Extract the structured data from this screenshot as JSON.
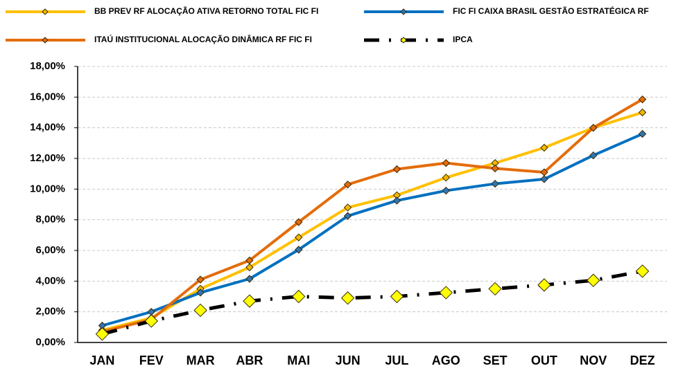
{
  "chart_data": {
    "type": "line",
    "categories": [
      "JAN",
      "FEV",
      "MAR",
      "ABR",
      "MAI",
      "JUN",
      "JUL",
      "AGO",
      "SET",
      "OUT",
      "NOV",
      "DEZ"
    ],
    "series": [
      {
        "name": "BB PREV RF ALOCAÇÃO ATIVA RETORNO TOTAL FIC FI",
        "color": "#ffc000",
        "marker_color": "#f5b800",
        "dashed": false,
        "values": [
          0.8,
          1.6,
          3.5,
          4.9,
          6.85,
          8.8,
          9.6,
          10.75,
          11.7,
          12.7,
          14.0,
          15.0
        ]
      },
      {
        "name": "FIC FI CAIXA BRASIL GESTÃO ESTRATÉGICA RF",
        "color": "#0070c0",
        "marker_color": "#2e75b6",
        "dashed": false,
        "values": [
          1.1,
          2.0,
          3.25,
          4.15,
          6.05,
          8.25,
          9.25,
          9.9,
          10.35,
          10.65,
          12.2,
          13.6
        ]
      },
      {
        "name": "ITAÚ INSTITUCIONAL ALOCAÇÃO DINÂMICA RF FIC FI",
        "color": "#e46c0a",
        "marker_color": "#e46c0a",
        "dashed": false,
        "values": [
          0.7,
          1.5,
          4.1,
          5.35,
          7.85,
          10.3,
          11.3,
          11.7,
          11.35,
          11.1,
          14.0,
          15.85
        ]
      },
      {
        "name": "IPCA",
        "color": "#000000",
        "marker_color": "#ffff00",
        "dashed": true,
        "values": [
          0.55,
          1.4,
          2.1,
          2.7,
          3.0,
          2.9,
          3.0,
          3.25,
          3.5,
          3.75,
          4.05,
          4.65
        ]
      }
    ],
    "ylim": [
      0,
      18
    ],
    "yticks": [
      {
        "value": 0,
        "label": "0,00%"
      },
      {
        "value": 2,
        "label": "2,00%"
      },
      {
        "value": 4,
        "label": "4,00%"
      },
      {
        "value": 6,
        "label": "6,00%"
      },
      {
        "value": 8,
        "label": "8,00%"
      },
      {
        "value": 10,
        "label": "10,00%"
      },
      {
        "value": 12,
        "label": "12,00%"
      },
      {
        "value": 14,
        "label": "14,00%"
      },
      {
        "value": 16,
        "label": "16,00%"
      },
      {
        "value": 18,
        "label": "18,00%"
      }
    ],
    "grid": true
  }
}
